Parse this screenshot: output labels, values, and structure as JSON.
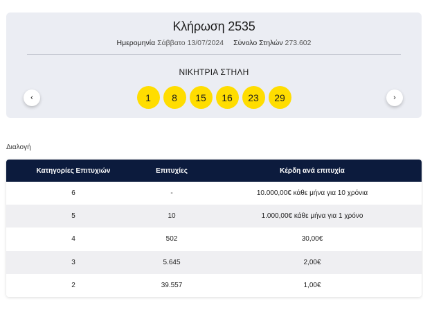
{
  "draw": {
    "title": "Κλήρωση 2535",
    "date_label": "Ημερομηνία",
    "date_value": "Σάββατο 13/07/2024",
    "total_label": "Σύνολο Στηλών",
    "total_value": "273.602",
    "winning_title": "ΝΙΚΗΤΡΙΑ ΣΤΗΛΗ",
    "numbers": [
      "1",
      "8",
      "15",
      "16",
      "23",
      "29"
    ],
    "prev_icon": "‹",
    "next_icon": "›"
  },
  "game_label": "Διαλογή",
  "table": {
    "headers": [
      "Κατηγορίες Επιτυχιών",
      "Επιτυχίες",
      "Κέρδη ανά επιτυχία"
    ],
    "rows": [
      [
        "6",
        "-",
        "10.000,00€ κάθε μήνα για 10 χρόνια"
      ],
      [
        "5",
        "10",
        "1.000,00€ κάθε μήνα για 1 χρόνο"
      ],
      [
        "4",
        "502",
        "30,00€"
      ],
      [
        "3",
        "5.645",
        "2,00€"
      ],
      [
        "2",
        "39.557",
        "1,00€"
      ]
    ]
  },
  "colors": {
    "ball": "#ffdd00",
    "header_bg": "#0c1b3d",
    "card_bg": "#ebedf3"
  }
}
